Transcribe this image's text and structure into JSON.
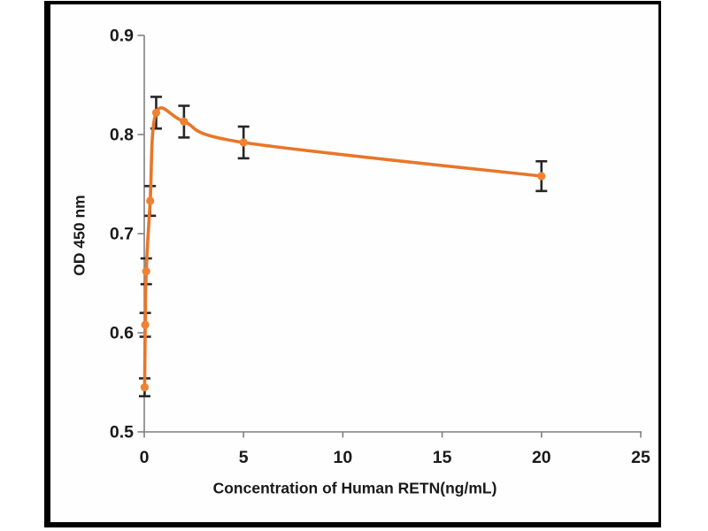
{
  "chart_data": {
    "type": "line",
    "title": "",
    "xlabel": "Concentration of Human RETN(ng/mL)",
    "ylabel": "OD 450 nm",
    "x": [
      0.02,
      0.05,
      0.1,
      0.3,
      0.6,
      2,
      5,
      20
    ],
    "y": [
      0.545,
      0.608,
      0.662,
      0.733,
      0.822,
      0.813,
      0.792,
      0.758
    ],
    "y_err": [
      0.009,
      0.012,
      0.013,
      0.015,
      0.016,
      0.016,
      0.016,
      0.015
    ],
    "xlim": [
      0,
      25
    ],
    "ylim": [
      0.5,
      0.9
    ],
    "x_tick_values": [
      0,
      5,
      10,
      15,
      20,
      25
    ],
    "x_tick_labels": [
      "0",
      "5",
      "10",
      "15",
      "20",
      "25"
    ],
    "y_tick_values": [
      0.5,
      0.6,
      0.7,
      0.8,
      0.9
    ],
    "y_tick_labels": [
      "0.5",
      "0.6",
      "0.7",
      "0.8",
      "0.9"
    ],
    "grid": false,
    "legend": false,
    "smooth": true,
    "marker": "circle",
    "error_bars": "vertical",
    "colors": {
      "line": "#E8762A",
      "marker": "#F08232",
      "error_bar": "#262626",
      "axis": "#808080",
      "text": "#1a1a1a",
      "frame": "#000000",
      "background": "#FFFFFF"
    }
  }
}
